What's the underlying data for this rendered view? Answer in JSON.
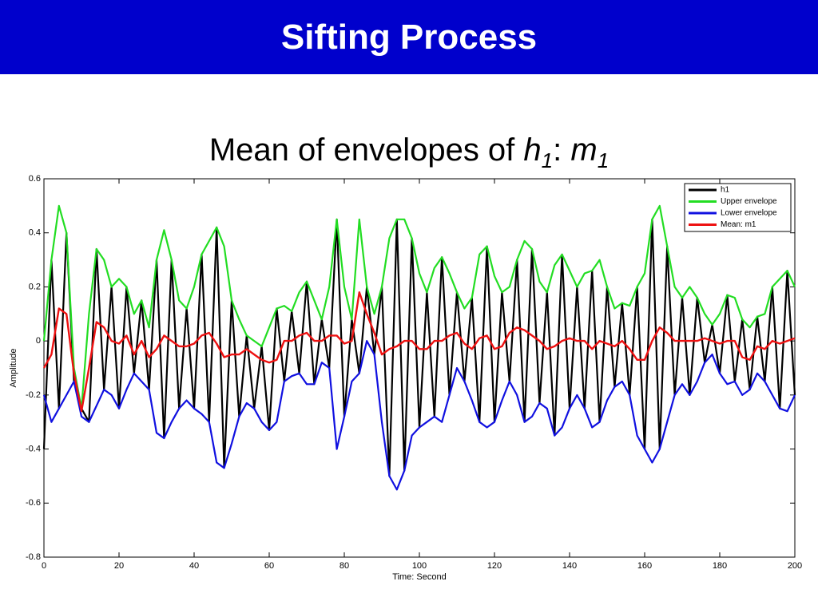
{
  "title": "Sifting Process",
  "chart_data": {
    "type": "line",
    "title_parts": [
      "Mean of envelopes of",
      "h",
      "1",
      ":",
      "m",
      "1"
    ],
    "xlabel": "Time: Second",
    "ylabel": "Amplitude",
    "xlim": [
      0,
      200
    ],
    "xticks": [
      0,
      20,
      40,
      60,
      80,
      100,
      120,
      140,
      160,
      180,
      200
    ],
    "ylim": [
      -0.8,
      0.6
    ],
    "yticks": [
      -0.8,
      -0.6,
      -0.4,
      -0.2,
      0,
      0.2,
      0.4,
      0.6
    ],
    "legend": "upper right",
    "x": [
      0,
      2,
      4,
      6,
      8,
      10,
      12,
      14,
      16,
      18,
      20,
      22,
      24,
      26,
      28,
      30,
      32,
      34,
      36,
      38,
      40,
      42,
      44,
      46,
      48,
      50,
      52,
      54,
      56,
      58,
      60,
      62,
      64,
      66,
      68,
      70,
      72,
      74,
      76,
      78,
      80,
      82,
      84,
      86,
      88,
      90,
      92,
      94,
      96,
      98,
      100,
      102,
      104,
      106,
      108,
      110,
      112,
      114,
      116,
      118,
      120,
      122,
      124,
      126,
      128,
      130,
      132,
      134,
      136,
      138,
      140,
      142,
      144,
      146,
      148,
      150,
      152,
      154,
      156,
      158,
      160,
      162,
      164,
      166,
      168,
      170,
      172,
      174,
      176,
      178,
      180,
      182,
      184,
      186,
      188,
      190,
      192,
      194,
      196,
      198,
      200
    ],
    "series": [
      {
        "name": "h1",
        "color": "#000000",
        "width": 2.2,
        "values": [
          -0.4,
          0.3,
          -0.25,
          0.4,
          -0.15,
          -0.25,
          -0.3,
          0.34,
          -0.18,
          0.2,
          -0.25,
          0.2,
          -0.12,
          0.15,
          -0.18,
          0.3,
          -0.36,
          0.3,
          -0.25,
          0.12,
          -0.25,
          0.32,
          -0.3,
          0.42,
          -0.47,
          0.15,
          -0.28,
          0.02,
          -0.25,
          -0.02,
          -0.33,
          0.12,
          -0.15,
          0.11,
          -0.12,
          0.22,
          -0.16,
          0.08,
          -0.1,
          0.45,
          -0.28,
          0.08,
          -0.12,
          0.2,
          -0.05,
          0.2,
          -0.5,
          0.45,
          -0.48,
          0.38,
          -0.32,
          0.18,
          -0.28,
          0.31,
          -0.2,
          0.18,
          -0.15,
          0.16,
          -0.3,
          0.35,
          -0.3,
          0.18,
          -0.15,
          0.3,
          -0.3,
          0.34,
          -0.23,
          0.18,
          -0.35,
          0.32,
          -0.25,
          0.2,
          -0.25,
          0.26,
          -0.3,
          0.2,
          -0.17,
          0.14,
          -0.2,
          0.2,
          -0.4,
          0.45,
          -0.4,
          0.35,
          -0.2,
          0.16,
          -0.2,
          0.16,
          -0.08,
          0.06,
          -0.12,
          0.17,
          -0.15,
          0.08,
          -0.18,
          0.09,
          -0.15,
          0.2,
          -0.25,
          0.26,
          -0.2
        ]
      },
      {
        "name": "Upper envelope",
        "color": "#22dd22",
        "width": 2.2,
        "values": [
          0.0,
          0.3,
          0.5,
          0.4,
          -0.1,
          -0.25,
          0.1,
          0.34,
          0.3,
          0.2,
          0.23,
          0.2,
          0.1,
          0.15,
          0.05,
          0.3,
          0.41,
          0.3,
          0.15,
          0.12,
          0.2,
          0.32,
          0.37,
          0.42,
          0.35,
          0.15,
          0.08,
          0.02,
          0.0,
          -0.02,
          0.05,
          0.12,
          0.13,
          0.11,
          0.18,
          0.22,
          0.15,
          0.08,
          0.2,
          0.45,
          0.2,
          0.08,
          0.45,
          0.2,
          0.1,
          0.2,
          0.38,
          0.45,
          0.45,
          0.38,
          0.25,
          0.18,
          0.27,
          0.31,
          0.25,
          0.18,
          0.12,
          0.16,
          0.32,
          0.35,
          0.24,
          0.18,
          0.2,
          0.3,
          0.37,
          0.34,
          0.22,
          0.18,
          0.28,
          0.32,
          0.26,
          0.2,
          0.25,
          0.26,
          0.3,
          0.2,
          0.12,
          0.14,
          0.13,
          0.2,
          0.25,
          0.45,
          0.5,
          0.35,
          0.2,
          0.16,
          0.2,
          0.16,
          0.1,
          0.06,
          0.1,
          0.17,
          0.16,
          0.08,
          0.05,
          0.09,
          0.1,
          0.2,
          0.23,
          0.26,
          0.2
        ]
      },
      {
        "name": "Lower envelope",
        "color": "#1010e0",
        "width": 2.2,
        "values": [
          -0.2,
          -0.3,
          -0.25,
          -0.2,
          -0.15,
          -0.28,
          -0.3,
          -0.24,
          -0.18,
          -0.2,
          -0.25,
          -0.18,
          -0.12,
          -0.15,
          -0.18,
          -0.34,
          -0.36,
          -0.3,
          -0.25,
          -0.22,
          -0.25,
          -0.27,
          -0.3,
          -0.45,
          -0.47,
          -0.38,
          -0.28,
          -0.23,
          -0.25,
          -0.3,
          -0.33,
          -0.3,
          -0.15,
          -0.13,
          -0.12,
          -0.16,
          -0.16,
          -0.08,
          -0.1,
          -0.4,
          -0.28,
          -0.15,
          -0.12,
          0.0,
          -0.05,
          -0.3,
          -0.5,
          -0.55,
          -0.48,
          -0.35,
          -0.32,
          -0.3,
          -0.28,
          -0.3,
          -0.2,
          -0.1,
          -0.15,
          -0.22,
          -0.3,
          -0.32,
          -0.3,
          -0.22,
          -0.15,
          -0.2,
          -0.3,
          -0.28,
          -0.23,
          -0.25,
          -0.35,
          -0.32,
          -0.25,
          -0.2,
          -0.25,
          -0.32,
          -0.3,
          -0.22,
          -0.17,
          -0.15,
          -0.2,
          -0.35,
          -0.4,
          -0.45,
          -0.4,
          -0.3,
          -0.2,
          -0.16,
          -0.2,
          -0.15,
          -0.08,
          -0.05,
          -0.12,
          -0.16,
          -0.15,
          -0.2,
          -0.18,
          -0.12,
          -0.15,
          -0.2,
          -0.25,
          -0.26,
          -0.2
        ]
      },
      {
        "name": "Mean: m1",
        "color": "#ee1111",
        "width": 2.4,
        "values": [
          -0.1,
          -0.05,
          0.12,
          0.1,
          -0.12,
          -0.26,
          -0.1,
          0.07,
          0.05,
          0.0,
          -0.01,
          0.02,
          -0.05,
          0.0,
          -0.06,
          -0.03,
          0.02,
          0.0,
          -0.02,
          -0.02,
          -0.01,
          0.02,
          0.03,
          -0.01,
          -0.06,
          -0.05,
          -0.05,
          -0.03,
          -0.05,
          -0.07,
          -0.08,
          -0.07,
          0.0,
          0.0,
          0.02,
          0.03,
          0.0,
          0.0,
          0.02,
          0.02,
          -0.01,
          0.0,
          0.18,
          0.1,
          0.03,
          -0.05,
          -0.03,
          -0.02,
          0.0,
          0.0,
          -0.03,
          -0.03,
          0.0,
          0.0,
          0.02,
          0.03,
          -0.01,
          -0.03,
          0.01,
          0.02,
          -0.03,
          -0.02,
          0.03,
          0.05,
          0.04,
          0.02,
          0.0,
          -0.03,
          -0.02,
          0.0,
          0.01,
          0.0,
          0.0,
          -0.03,
          0.0,
          -0.01,
          -0.02,
          0.0,
          -0.03,
          -0.07,
          -0.07,
          0.0,
          0.05,
          0.03,
          0.0,
          0.0,
          0.0,
          0.0,
          0.01,
          0.0,
          -0.01,
          0.0,
          0.0,
          -0.06,
          -0.07,
          -0.02,
          -0.03,
          0.0,
          -0.01,
          0.0,
          0.01
        ]
      }
    ]
  }
}
